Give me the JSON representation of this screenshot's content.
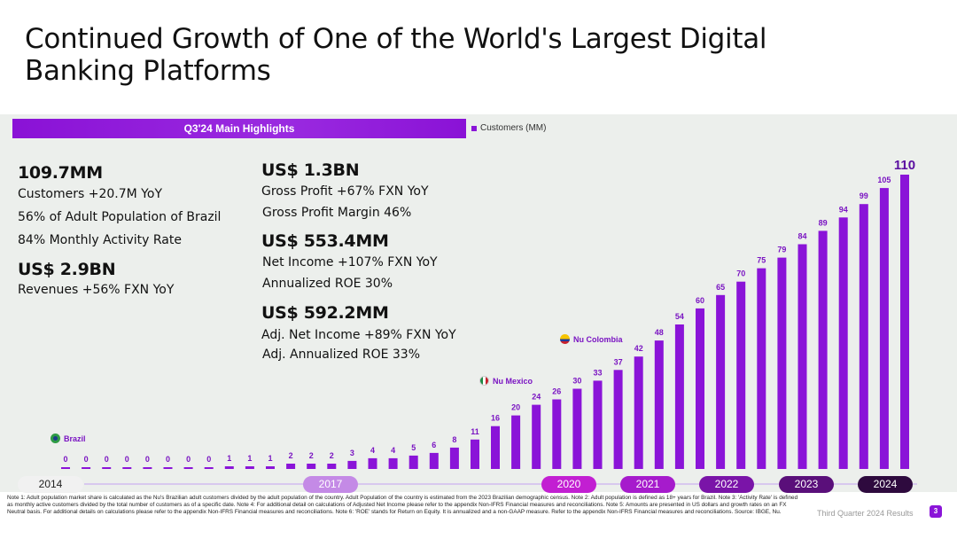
{
  "title": "Continued Growth of One of the World's Largest Digital Banking Platforms",
  "highlights_header": "Q3'24 Main Highlights",
  "legend_label": "Customers (MM)",
  "highlights": {
    "customers_value": "109.7MM",
    "customers_yoy": "Customers +20.7M YoY",
    "adult_population": "56% of Adult Population of Brazil",
    "activity_rate": "84% Monthly Activity Rate",
    "revenues_value": "US$ 2.9BN",
    "revenues_yoy": "Revenues +56%  FXN YoY",
    "gross_profit_value": "US$ 1.3BN",
    "gross_profit_yoy": "Gross Profit +67%  FXN YoY",
    "gross_profit_margin": "Gross Profit Margin 46%",
    "net_income_value": "US$ 553.4MM",
    "net_income_yoy": "Net Income +107% FXN YoY",
    "roe": "Annualized ROE 30%",
    "adj_net_income_value": "US$ 592.2MM",
    "adj_net_income_yoy": "Adj. Net Income +89% FXN YoY",
    "adj_roe": "Adj. Annualized ROE 33%"
  },
  "markers": {
    "brazil": "Brazil",
    "mexico": "Nu Mexico",
    "colombia": "Nu Colombia"
  },
  "timeline": {
    "y2014": "2014",
    "y2017": "2017",
    "y2020": "2020",
    "y2021": "2021",
    "y2022": "2022",
    "y2023": "2023",
    "y2024": "2024"
  },
  "chart_data": {
    "type": "bar",
    "series": [
      {
        "name": "Customers (MM)",
        "values": [
          0,
          0,
          0,
          0,
          0,
          0,
          0,
          0,
          1,
          1,
          1,
          2,
          2,
          2,
          3,
          4,
          4,
          5,
          6,
          8,
          11,
          16,
          20,
          24,
          26,
          30,
          33,
          37,
          42,
          48,
          54,
          60,
          65,
          70,
          75,
          79,
          84,
          89,
          94,
          99,
          105,
          110
        ]
      }
    ],
    "data_labels": [
      "0",
      "0",
      "0",
      "0",
      "0",
      "0",
      "0",
      "0",
      "1",
      "1",
      "1",
      "2",
      "2",
      "2",
      "3",
      "4",
      "4",
      "5",
      "6",
      "8",
      "11",
      "16",
      "20",
      "24",
      "26",
      "30",
      "33",
      "37",
      "42",
      "48",
      "54",
      "60",
      "65",
      "70",
      "75",
      "79",
      "84",
      "89",
      "94",
      "99",
      "105",
      "110"
    ],
    "ylim": [
      0,
      110
    ],
    "colors": {
      "bar": "#8a14d8",
      "label": "#7a14c2",
      "highlight_label": "#5a0fa0"
    }
  },
  "footnotes": "Note 1: Adult population market share is calculated as the Nu's Brazilian adult customers divided by the adult population of the country. Adult Population of the country is estimated from the 2023 Brazilian demographic census. Note 2: Adult population is defined as 18+ years for Brazil. Note 3: 'Activity Rate' is defined as monthly active customers divided by the total number of customers as of a specific date. Note 4: For additional detail on calculations of Adjusted Net Income please refer to the appendix Non-IFRS Financial measures and reconciliations. Note 5: Amounts are presented in US dollars and growth rates on an FX Neutral basis. For additional details on calculations please refer to the appendix Non-IFRS Financial measures and reconciliations. Note 6: 'ROE' stands for Return on Equity. It is annualized and a non-GAAP measure. Refer to the appendix Non-IFRS Financial measures and reconciliations. Source: IBGE, Nu.",
  "footer_label": "Third Quarter 2024 Results",
  "page_number": "3"
}
